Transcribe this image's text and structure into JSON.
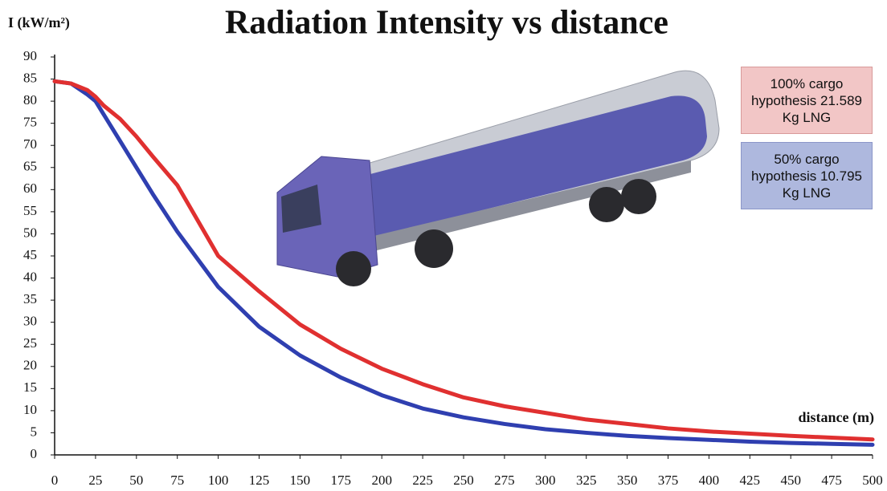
{
  "chart_data": {
    "type": "line",
    "title": "Radiation Intensity vs distance",
    "y_label": "I (kW/m²)",
    "x_label": "distance (m)",
    "x": [
      0,
      10,
      20,
      25,
      30,
      40,
      50,
      60,
      75,
      100,
      125,
      150,
      175,
      200,
      225,
      250,
      275,
      300,
      325,
      350,
      375,
      400,
      425,
      450,
      475,
      500
    ],
    "series": [
      {
        "name": "100% cargo hypothesis 21.589 Kg LNG",
        "color": "#e03030",
        "legend_background": "#f2c6c6",
        "legend_border": "#d89a9a",
        "values": [
          84.5,
          84,
          82.5,
          81,
          79,
          76,
          72,
          67.5,
          61,
          45,
          37,
          29.5,
          24,
          19.5,
          16,
          13,
          11,
          9.5,
          8,
          7,
          6,
          5.3,
          4.8,
          4.3,
          3.9,
          3.5
        ]
      },
      {
        "name": "50% cargo hypothesis 10.795 Kg LNG",
        "color": "#2f3fb0",
        "legend_background": "#aeb8de",
        "legend_border": "#8b96c8",
        "values": [
          84.5,
          84,
          81.5,
          80,
          77,
          71,
          65,
          59,
          50.5,
          38,
          29,
          22.5,
          17.5,
          13.5,
          10.5,
          8.5,
          7,
          5.8,
          5,
          4.3,
          3.8,
          3.4,
          3,
          2.7,
          2.5,
          2.3
        ]
      }
    ],
    "xlim": [
      0,
      500
    ],
    "xticks": [
      0,
      25,
      50,
      75,
      100,
      125,
      150,
      175,
      200,
      225,
      250,
      275,
      300,
      325,
      350,
      375,
      400,
      425,
      450,
      475,
      500
    ],
    "ylim": [
      0,
      90
    ],
    "yticks": [
      0,
      5,
      10,
      15,
      20,
      25,
      30,
      35,
      40,
      45,
      50,
      55,
      60,
      65,
      70,
      75,
      80,
      85,
      90
    ]
  }
}
